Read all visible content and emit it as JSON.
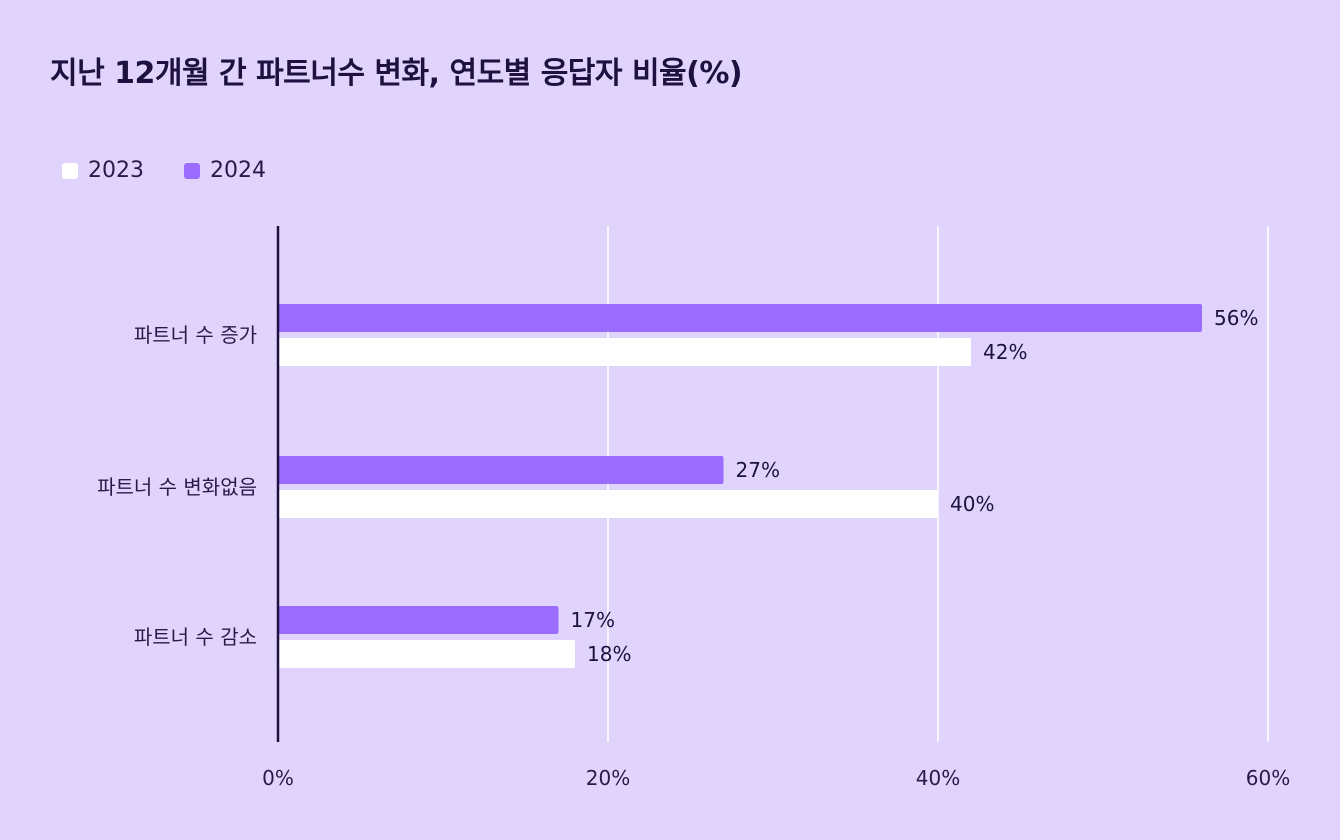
{
  "chart_data": {
    "type": "bar",
    "orientation": "horizontal",
    "title": "지난 12개월 간 파트너수 변화, 연도별 응답자 비율(%)",
    "categories": [
      "파트너 수 증가",
      "파트너 수 변화없음",
      "파트너 수 감소"
    ],
    "series": [
      {
        "name": "2024",
        "color": "#9b6dff",
        "values": [
          56,
          27,
          17
        ],
        "labels": [
          "56%",
          "27%",
          "17%"
        ]
      },
      {
        "name": "2023",
        "color": "#ffffff",
        "values": [
          42,
          40,
          18
        ],
        "labels": [
          "42%",
          "40%",
          "18%"
        ]
      }
    ],
    "legend_order": [
      "2023",
      "2024"
    ],
    "xlim": [
      0,
      60
    ],
    "xticks": [
      0,
      20,
      40,
      60
    ],
    "xtick_labels": [
      "0%",
      "20%",
      "40%",
      "60%"
    ],
    "grid": true,
    "legend_position": "top-left"
  },
  "colors": {
    "background": "#e0d4fd",
    "bar_2024": "#9b6dff",
    "bar_2023": "#ffffff",
    "axis": "#1e1140",
    "grid": "#ffffff"
  }
}
